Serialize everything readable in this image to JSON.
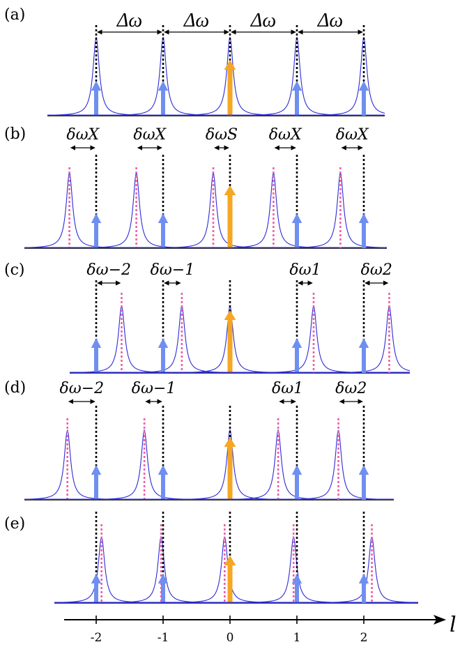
{
  "colors": {
    "lorentzian": "#2b2bd6",
    "side_arrow": "#6f8ff0",
    "center_arrow": "#f5a623",
    "pink_line": "#ee5ea8",
    "black_line": "#000000"
  },
  "axis": {
    "variable": "l",
    "ticks": [
      "-2",
      "-1",
      "0",
      "1",
      "2"
    ],
    "tick_values": [
      -2,
      -1,
      0,
      1,
      2
    ]
  },
  "panels": [
    {
      "label": "(a)",
      "peak_offsets": [
        0,
        0,
        0,
        0,
        0
      ],
      "pink_lines": [
        false,
        false,
        false,
        false,
        false
      ],
      "annotations": [
        "Δω",
        "Δω",
        "Δω",
        "Δω"
      ],
      "annotation_style": "spacing"
    },
    {
      "label": "(b)",
      "peak_offsets": [
        -0.4,
        -0.4,
        -0.25,
        -0.35,
        -0.35
      ],
      "pink_lines": [
        true,
        true,
        true,
        true,
        true
      ],
      "annotations": [
        "δωX",
        "δωX",
        "δωS",
        "δωX",
        "δωX"
      ],
      "annotation_style": "detuning"
    },
    {
      "label": "(c)",
      "peak_offsets": [
        0.38,
        0.28,
        0,
        0.25,
        0.38
      ],
      "pink_lines": [
        true,
        true,
        false,
        true,
        true
      ],
      "annotations": [
        "δω−2",
        "δω−1",
        "",
        "δω1",
        "δω2"
      ],
      "annotation_style": "detuning"
    },
    {
      "label": "(d)",
      "peak_offsets": [
        -0.43,
        -0.28,
        0,
        -0.28,
        -0.38
      ],
      "pink_lines": [
        true,
        true,
        false,
        true,
        true
      ],
      "annotations": [
        "δω−2",
        "δω−1",
        "",
        "δω1",
        "δω2"
      ],
      "annotation_style": "detuning"
    },
    {
      "label": "(e)",
      "peak_offsets": [
        0.08,
        -0.03,
        -0.08,
        -0.05,
        0.12
      ],
      "pink_lines": [
        true,
        true,
        true,
        true,
        true
      ],
      "annotations": [],
      "annotation_style": "none"
    }
  ]
}
